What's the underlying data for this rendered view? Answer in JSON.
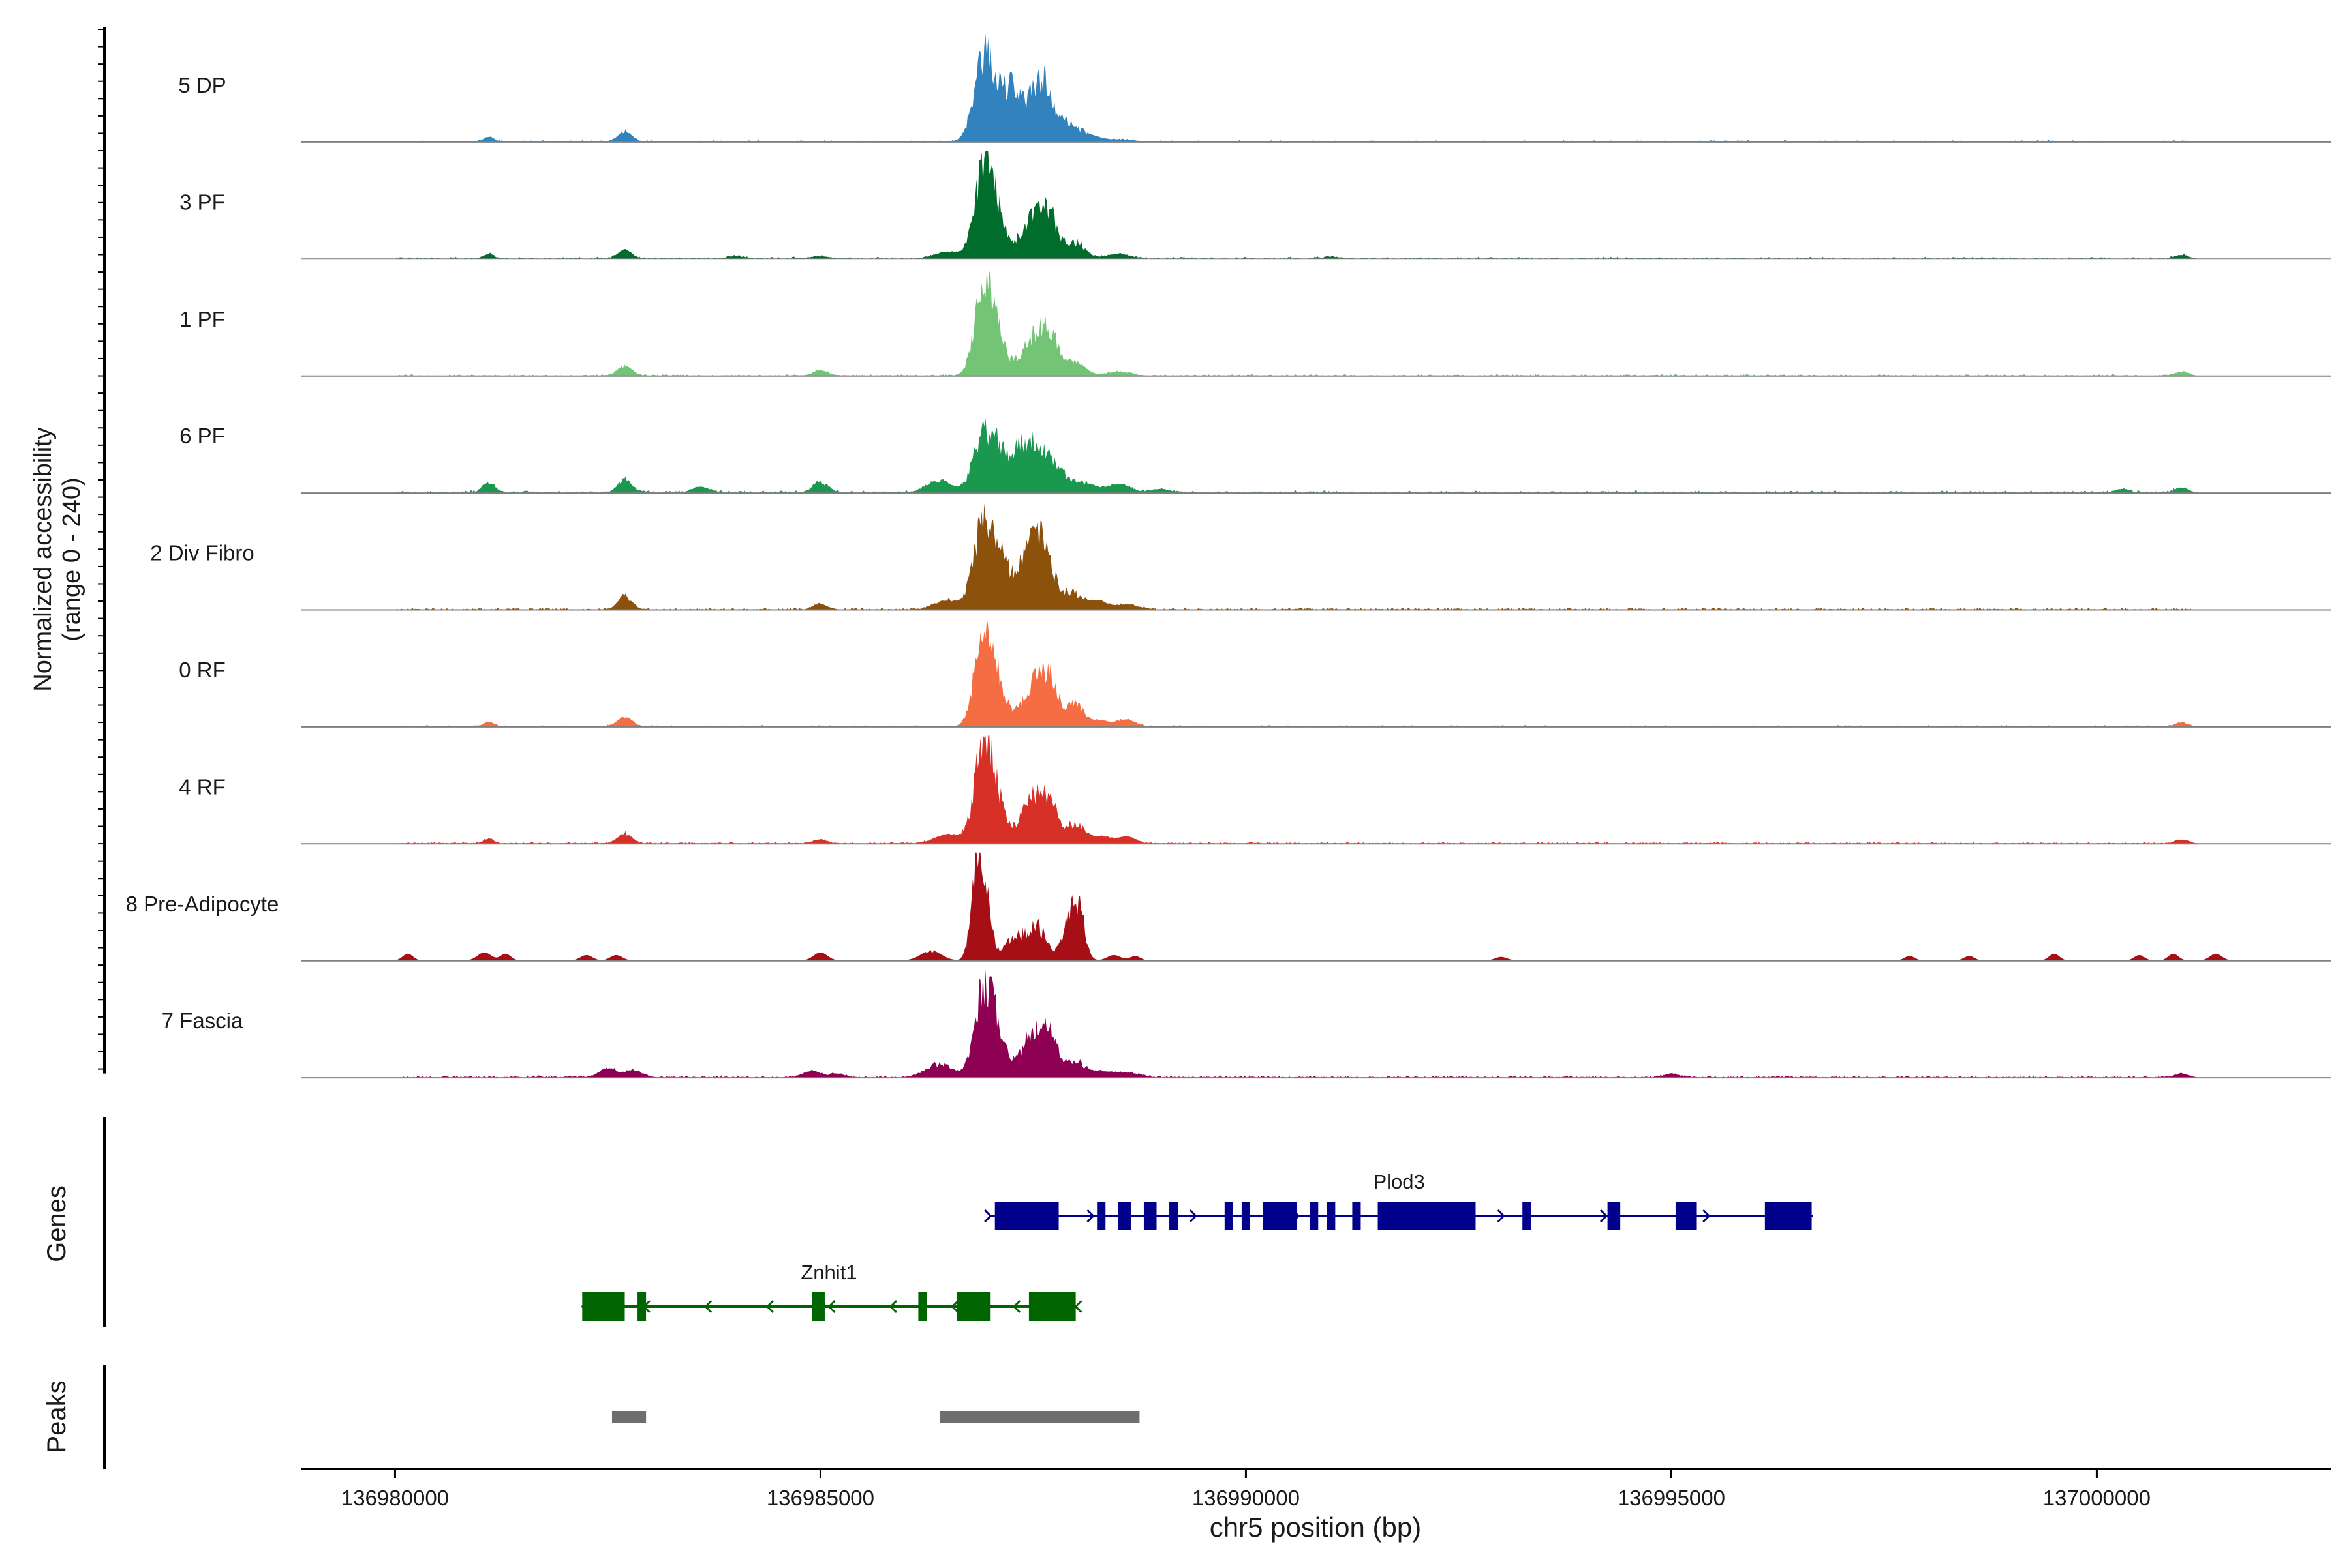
{
  "chart_data": {
    "type": "area",
    "title": "",
    "ylabel_line1": "Normalized accessibility",
    "ylabel_line2": "(range 0 - 240)",
    "y_range": [
      0,
      240
    ],
    "xlabel": "chr5 position (bp)",
    "xlim": [
      136978900,
      137002750
    ],
    "x_ticks": [
      {
        "value": 136980000,
        "label": "136980000"
      },
      {
        "value": 136985000,
        "label": "136985000"
      },
      {
        "value": 136990000,
        "label": "136990000"
      },
      {
        "value": 136995000,
        "label": "136995000"
      },
      {
        "value": 137000000,
        "label": "137000000"
      }
    ],
    "tracks": [
      {
        "name": "5 DP",
        "color": "#3182bd",
        "peaks": [
          [
            136981100,
            10,
            60
          ],
          [
            136982700,
            22,
            80
          ],
          [
            136986900,
            150,
            110
          ],
          [
            136987050,
            90,
            120
          ],
          [
            136987250,
            90,
            80
          ],
          [
            136987500,
            95,
            140
          ],
          [
            136987650,
            80,
            100
          ],
          [
            136987900,
            38,
            120
          ],
          [
            136988150,
            14,
            120
          ],
          [
            136988500,
            5,
            150
          ]
        ],
        "noise": {
          "start": 136980000,
          "end": 137001100,
          "amp": 4,
          "seed": 11
        }
      },
      {
        "name": "3 PF",
        "color": "#006d2c",
        "peaks": [
          [
            136981100,
            10,
            60
          ],
          [
            136982700,
            20,
            80
          ],
          [
            136984000,
            5,
            100
          ],
          [
            136985000,
            5,
            100
          ],
          [
            136986500,
            15,
            150
          ],
          [
            136986900,
            165,
            100
          ],
          [
            136987050,
            110,
            110
          ],
          [
            136987500,
            95,
            140
          ],
          [
            136987700,
            75,
            100
          ],
          [
            136988000,
            35,
            110
          ],
          [
            136988500,
            10,
            140
          ],
          [
            136991000,
            4,
            100
          ],
          [
            137001000,
            8,
            80
          ]
        ],
        "noise": {
          "start": 136980000,
          "end": 137001100,
          "amp": 5,
          "seed": 22
        }
      },
      {
        "name": "1 PF",
        "color": "#74c476",
        "peaks": [
          [
            136982700,
            22,
            80
          ],
          [
            136985000,
            12,
            80
          ],
          [
            136986900,
            160,
            100
          ],
          [
            136987050,
            100,
            110
          ],
          [
            136987500,
            85,
            140
          ],
          [
            136987700,
            80,
            100
          ],
          [
            136988000,
            30,
            110
          ],
          [
            136988500,
            8,
            140
          ],
          [
            137001000,
            8,
            80
          ]
        ],
        "noise": {
          "start": 136980000,
          "end": 137001100,
          "amp": 4,
          "seed": 33
        }
      },
      {
        "name": "6 PF",
        "color": "#1a9850",
        "peaks": [
          [
            136981100,
            22,
            70
          ],
          [
            136982700,
            28,
            80
          ],
          [
            136983600,
            12,
            100
          ],
          [
            136985000,
            25,
            80
          ],
          [
            136986400,
            25,
            150
          ],
          [
            136986900,
            120,
            110
          ],
          [
            136987100,
            85,
            110
          ],
          [
            136987350,
            75,
            100
          ],
          [
            136987550,
            100,
            130
          ],
          [
            136987800,
            40,
            110
          ],
          [
            136988100,
            22,
            120
          ],
          [
            136988500,
            18,
            140
          ],
          [
            136989000,
            8,
            100
          ],
          [
            137000300,
            8,
            80
          ],
          [
            137001000,
            10,
            80
          ]
        ],
        "noise": {
          "start": 136980000,
          "end": 137001100,
          "amp": 6,
          "seed": 44
        }
      },
      {
        "name": "2 Div Fibro",
        "color": "#8c510a",
        "peaks": [
          [
            136982700,
            30,
            80
          ],
          [
            136985000,
            12,
            80
          ],
          [
            136986500,
            20,
            150
          ],
          [
            136986900,
            175,
            110
          ],
          [
            136987100,
            110,
            110
          ],
          [
            136987450,
            130,
            140
          ],
          [
            136987650,
            100,
            100
          ],
          [
            136987950,
            38,
            110
          ],
          [
            136988250,
            18,
            120
          ],
          [
            136988600,
            10,
            140
          ]
        ],
        "noise": {
          "start": 136980000,
          "end": 137001100,
          "amp": 5,
          "seed": 55
        }
      },
      {
        "name": "0 RF",
        "color": "#f46d43",
        "peaks": [
          [
            136981100,
            10,
            60
          ],
          [
            136982700,
            22,
            80
          ],
          [
            136986900,
            170,
            100
          ],
          [
            136987050,
            110,
            110
          ],
          [
            136987500,
            95,
            140
          ],
          [
            136987700,
            85,
            100
          ],
          [
            136988000,
            50,
            100
          ],
          [
            136988300,
            12,
            120
          ],
          [
            136988600,
            15,
            100
          ],
          [
            137001000,
            8,
            80
          ]
        ],
        "noise": {
          "start": 136980000,
          "end": 137001100,
          "amp": 4,
          "seed": 66
        }
      },
      {
        "name": "4 RF",
        "color": "#d73027",
        "peaks": [
          [
            136981100,
            10,
            60
          ],
          [
            136982700,
            22,
            80
          ],
          [
            136985000,
            8,
            80
          ],
          [
            136986500,
            20,
            150
          ],
          [
            136986900,
            190,
            100
          ],
          [
            136987050,
            110,
            110
          ],
          [
            136987500,
            100,
            140
          ],
          [
            136987700,
            70,
            100
          ],
          [
            136988000,
            45,
            100
          ],
          [
            136988300,
            15,
            120
          ],
          [
            136988600,
            15,
            100
          ],
          [
            137001000,
            8,
            80
          ]
        ],
        "noise": {
          "start": 136980000,
          "end": 137001100,
          "amp": 4,
          "seed": 77
        }
      },
      {
        "name": "8 Pre-Adipocyte",
        "color": "#a50f15",
        "peaks": [
          [
            136980150,
            15,
            60
          ],
          [
            136981050,
            18,
            80
          ],
          [
            136981300,
            15,
            60
          ],
          [
            136982250,
            12,
            70
          ],
          [
            136982600,
            12,
            70
          ],
          [
            136985000,
            18,
            80
          ],
          [
            136986300,
            22,
            120
          ],
          [
            136986800,
            75,
            60
          ],
          [
            136986900,
            220,
            80
          ],
          [
            136987300,
            55,
            120
          ],
          [
            136987550,
            75,
            100
          ],
          [
            136987950,
            100,
            100
          ],
          [
            136988050,
            70,
            60
          ],
          [
            136988450,
            12,
            80
          ],
          [
            136988700,
            10,
            60
          ],
          [
            136993000,
            8,
            70
          ],
          [
            136997800,
            10,
            60
          ],
          [
            136998500,
            10,
            60
          ],
          [
            136999500,
            15,
            60
          ],
          [
            137000500,
            12,
            60
          ],
          [
            137000900,
            15,
            60
          ],
          [
            137001400,
            15,
            70
          ]
        ],
        "noise": null
      },
      {
        "name": "7 Fascia",
        "color": "#8e0152",
        "peaks": [
          [
            136982500,
            20,
            100
          ],
          [
            136982800,
            15,
            100
          ],
          [
            136984900,
            14,
            100
          ],
          [
            136985200,
            8,
            80
          ],
          [
            136986400,
            30,
            150
          ],
          [
            136986900,
            165,
            100
          ],
          [
            136987050,
            110,
            110
          ],
          [
            136987500,
            95,
            140
          ],
          [
            136987700,
            70,
            100
          ],
          [
            136988000,
            35,
            110
          ],
          [
            136988300,
            12,
            120
          ],
          [
            136988600,
            10,
            140
          ],
          [
            136995000,
            8,
            80
          ],
          [
            137001000,
            8,
            80
          ]
        ],
        "noise": {
          "start": 136980000,
          "end": 137001100,
          "amp": 5,
          "seed": 88
        }
      }
    ],
    "genes_label": "Genes",
    "genes": [
      {
        "name": "Plod3",
        "strand": "+",
        "color": "#00008b",
        "start": 136987000,
        "end": 136996650,
        "label_at": 136991800,
        "exons": [
          [
            136987050,
            136987800
          ],
          [
            136988250,
            136988350
          ],
          [
            136988500,
            136988650
          ],
          [
            136988800,
            136988950
          ],
          [
            136989100,
            136989200
          ],
          [
            136989750,
            136989850
          ],
          [
            136989950,
            136990050
          ],
          [
            136990200,
            136990600
          ],
          [
            136990750,
            136990850
          ],
          [
            136990950,
            136991050
          ],
          [
            136991250,
            136991350
          ],
          [
            136991550,
            136992700
          ],
          [
            136993250,
            136993350
          ],
          [
            136994250,
            136994400
          ],
          [
            136995050,
            136995300
          ],
          [
            136996100,
            136996650
          ]
        ]
      },
      {
        "name": "Znhit1",
        "strand": "-",
        "color": "#006400",
        "start": 136982200,
        "end": 136988000,
        "label_at": 136985100,
        "exons": [
          [
            136982200,
            136982700
          ],
          [
            136982850,
            136982950
          ],
          [
            136984900,
            136985050
          ],
          [
            136986150,
            136986250
          ],
          [
            136986600,
            136987000
          ],
          [
            136987450,
            136988000
          ]
        ]
      }
    ],
    "peaks_label": "Peaks",
    "peak_regions": [
      [
        136982550,
        136982950
      ],
      [
        136986400,
        136988750
      ]
    ]
  }
}
